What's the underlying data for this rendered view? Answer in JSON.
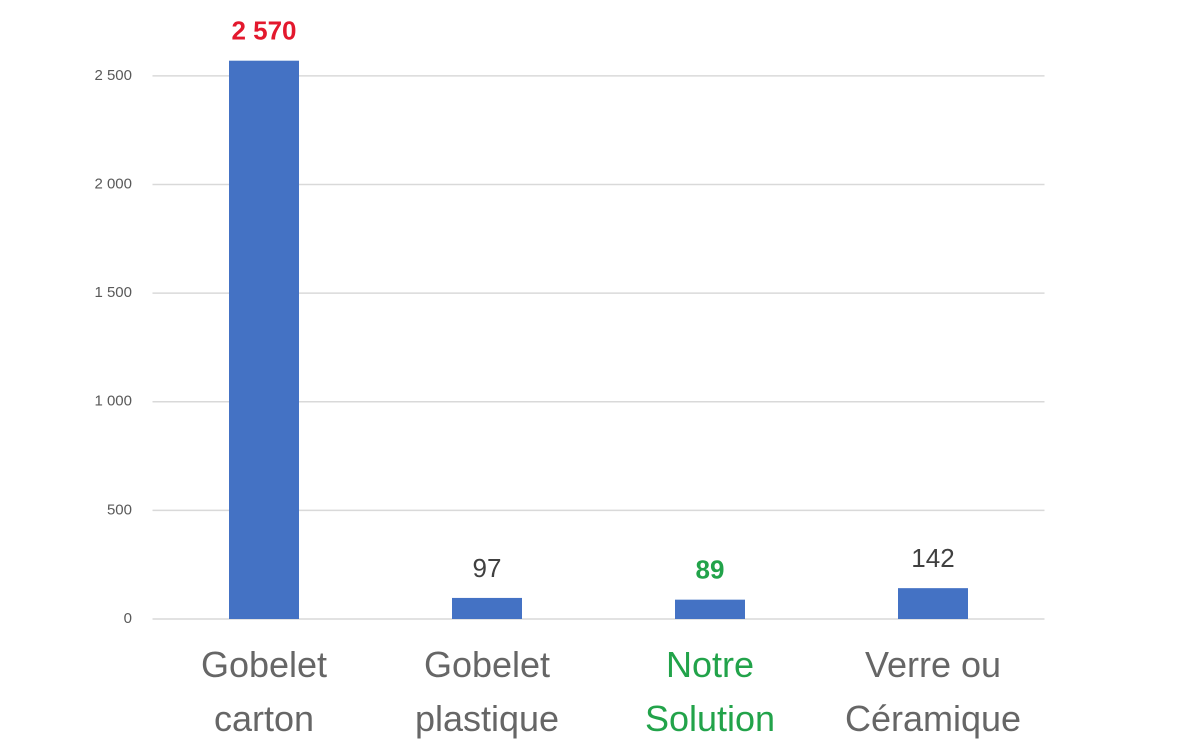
{
  "chart_data": {
    "type": "bar",
    "categories": [
      "Gobelet carton",
      "Gobelet plastique",
      "Notre Solution",
      "Verre ou Céramique"
    ],
    "values": [
      2570,
      97,
      89,
      142
    ],
    "value_labels": [
      "2 570",
      "97",
      "89",
      "142"
    ],
    "color": "#4472c4",
    "value_label_colors": [
      "#e3182d",
      "#404040",
      "#22a34a",
      "#404040"
    ],
    "value_label_weights": [
      "bold",
      "normal",
      "bold",
      "normal"
    ],
    "category_colors": [
      "#666666",
      "#666666",
      "#22a34a",
      "#666666"
    ],
    "ylim": [
      0,
      2600
    ],
    "yticks": [
      0,
      500,
      {
        "value": 1000,
        "label": "1 000"
      },
      {
        "value": 1500,
        "label": "1 500"
      },
      {
        "value": 2000,
        "label": "2 000"
      },
      {
        "value": 2500,
        "label": "2 500"
      }
    ],
    "grid": true
  }
}
